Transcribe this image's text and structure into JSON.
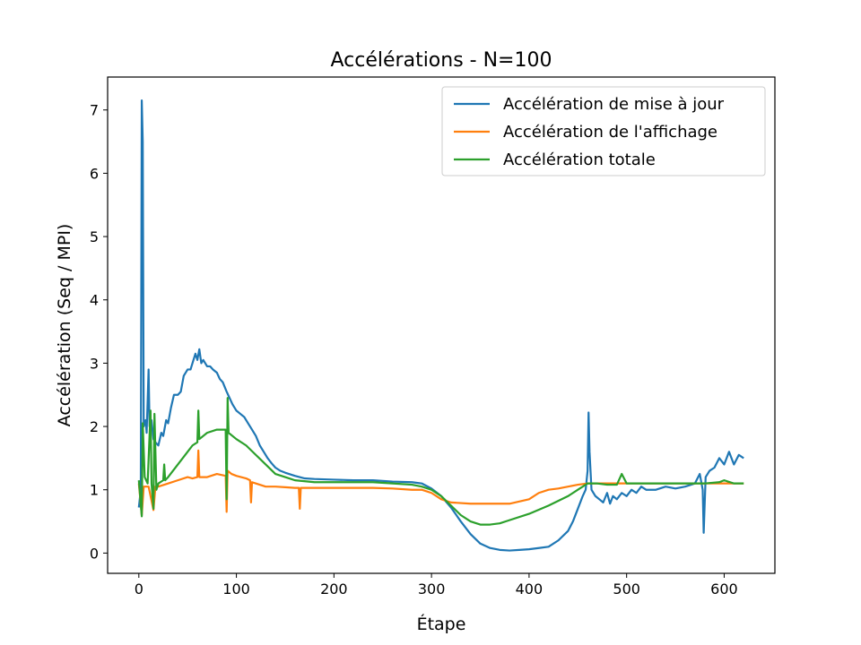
{
  "chart_data": {
    "type": "line",
    "title": "Accélérations - N=100",
    "xlabel": "Étape",
    "ylabel": "Accélération (Seq / MPI)",
    "xlim": [
      -32,
      652
    ],
    "ylim": [
      -0.32,
      7.52
    ],
    "xticks": [
      0,
      100,
      200,
      300,
      400,
      500,
      600
    ],
    "yticks": [
      0,
      1,
      2,
      3,
      4,
      5,
      6,
      7
    ],
    "grid": false,
    "legend_position": "top-right",
    "series": [
      {
        "name": "Accélération de mise à jour",
        "color": "#1f77b4",
        "points": [
          [
            0,
            0.72
          ],
          [
            2,
            1.0
          ],
          [
            3,
            7.15
          ],
          [
            4,
            6.5
          ],
          [
            5,
            2.0
          ],
          [
            7,
            2.1
          ],
          [
            8,
            1.9
          ],
          [
            10,
            2.9
          ],
          [
            11,
            2.0
          ],
          [
            13,
            2.1
          ],
          [
            15,
            1.8
          ],
          [
            17,
            1.75
          ],
          [
            20,
            1.7
          ],
          [
            23,
            1.9
          ],
          [
            25,
            1.85
          ],
          [
            28,
            2.1
          ],
          [
            30,
            2.05
          ],
          [
            33,
            2.3
          ],
          [
            36,
            2.5
          ],
          [
            40,
            2.5
          ],
          [
            43,
            2.55
          ],
          [
            46,
            2.8
          ],
          [
            50,
            2.9
          ],
          [
            53,
            2.9
          ],
          [
            56,
            3.05
          ],
          [
            58,
            3.15
          ],
          [
            60,
            3.05
          ],
          [
            62,
            3.22
          ],
          [
            64,
            3.0
          ],
          [
            66,
            3.05
          ],
          [
            70,
            2.95
          ],
          [
            73,
            2.95
          ],
          [
            76,
            2.9
          ],
          [
            80,
            2.85
          ],
          [
            83,
            2.75
          ],
          [
            86,
            2.7
          ],
          [
            90,
            2.55
          ],
          [
            93,
            2.45
          ],
          [
            96,
            2.35
          ],
          [
            100,
            2.25
          ],
          [
            104,
            2.2
          ],
          [
            108,
            2.15
          ],
          [
            112,
            2.05
          ],
          [
            116,
            1.95
          ],
          [
            120,
            1.85
          ],
          [
            124,
            1.7
          ],
          [
            128,
            1.6
          ],
          [
            132,
            1.5
          ],
          [
            136,
            1.42
          ],
          [
            140,
            1.35
          ],
          [
            145,
            1.3
          ],
          [
            150,
            1.27
          ],
          [
            160,
            1.22
          ],
          [
            170,
            1.18
          ],
          [
            180,
            1.17
          ],
          [
            200,
            1.16
          ],
          [
            220,
            1.15
          ],
          [
            240,
            1.15
          ],
          [
            260,
            1.13
          ],
          [
            280,
            1.12
          ],
          [
            290,
            1.1
          ],
          [
            300,
            1.02
          ],
          [
            310,
            0.9
          ],
          [
            320,
            0.72
          ],
          [
            330,
            0.5
          ],
          [
            340,
            0.3
          ],
          [
            350,
            0.15
          ],
          [
            360,
            0.08
          ],
          [
            370,
            0.05
          ],
          [
            380,
            0.04
          ],
          [
            390,
            0.05
          ],
          [
            400,
            0.06
          ],
          [
            410,
            0.08
          ],
          [
            420,
            0.1
          ],
          [
            430,
            0.2
          ],
          [
            440,
            0.35
          ],
          [
            445,
            0.5
          ],
          [
            450,
            0.7
          ],
          [
            455,
            0.9
          ],
          [
            458,
            1.0
          ],
          [
            460,
            1.3
          ],
          [
            461,
            2.22
          ],
          [
            462,
            1.6
          ],
          [
            464,
            1.0
          ],
          [
            468,
            0.9
          ],
          [
            472,
            0.85
          ],
          [
            476,
            0.8
          ],
          [
            480,
            0.95
          ],
          [
            483,
            0.78
          ],
          [
            486,
            0.9
          ],
          [
            490,
            0.85
          ],
          [
            495,
            0.95
          ],
          [
            500,
            0.9
          ],
          [
            505,
            1.0
          ],
          [
            510,
            0.95
          ],
          [
            515,
            1.05
          ],
          [
            520,
            1.0
          ],
          [
            530,
            1.0
          ],
          [
            540,
            1.05
          ],
          [
            550,
            1.02
          ],
          [
            560,
            1.05
          ],
          [
            570,
            1.1
          ],
          [
            575,
            1.25
          ],
          [
            578,
            1.0
          ],
          [
            579,
            0.32
          ],
          [
            581,
            1.2
          ],
          [
            585,
            1.3
          ],
          [
            590,
            1.35
          ],
          [
            595,
            1.5
          ],
          [
            600,
            1.4
          ],
          [
            605,
            1.6
          ],
          [
            610,
            1.4
          ],
          [
            615,
            1.55
          ],
          [
            620,
            1.5
          ]
        ]
      },
      {
        "name": "Accélération de l'affichage",
        "color": "#ff7f0e",
        "points": [
          [
            0,
            1.1
          ],
          [
            3,
            0.6
          ],
          [
            5,
            1.05
          ],
          [
            10,
            1.05
          ],
          [
            15,
            0.68
          ],
          [
            17,
            1.05
          ],
          [
            20,
            1.05
          ],
          [
            30,
            1.1
          ],
          [
            40,
            1.15
          ],
          [
            50,
            1.2
          ],
          [
            55,
            1.18
          ],
          [
            60,
            1.2
          ],
          [
            61,
            1.62
          ],
          [
            62,
            1.2
          ],
          [
            70,
            1.2
          ],
          [
            80,
            1.25
          ],
          [
            89,
            1.22
          ],
          [
            90,
            0.65
          ],
          [
            91,
            1.3
          ],
          [
            95,
            1.25
          ],
          [
            100,
            1.22
          ],
          [
            110,
            1.18
          ],
          [
            114,
            1.15
          ],
          [
            115,
            0.8
          ],
          [
            116,
            1.12
          ],
          [
            120,
            1.1
          ],
          [
            130,
            1.05
          ],
          [
            140,
            1.05
          ],
          [
            150,
            1.04
          ],
          [
            160,
            1.03
          ],
          [
            164,
            1.03
          ],
          [
            165,
            0.7
          ],
          [
            166,
            1.03
          ],
          [
            180,
            1.03
          ],
          [
            200,
            1.03
          ],
          [
            220,
            1.03
          ],
          [
            240,
            1.03
          ],
          [
            260,
            1.02
          ],
          [
            280,
            1.0
          ],
          [
            290,
            1.0
          ],
          [
            300,
            0.95
          ],
          [
            310,
            0.85
          ],
          [
            320,
            0.8
          ],
          [
            340,
            0.78
          ],
          [
            360,
            0.78
          ],
          [
            380,
            0.78
          ],
          [
            400,
            0.85
          ],
          [
            410,
            0.95
          ],
          [
            420,
            1.0
          ],
          [
            430,
            1.02
          ],
          [
            440,
            1.05
          ],
          [
            450,
            1.08
          ],
          [
            460,
            1.1
          ],
          [
            480,
            1.1
          ],
          [
            500,
            1.1
          ],
          [
            520,
            1.1
          ],
          [
            540,
            1.1
          ],
          [
            560,
            1.1
          ],
          [
            580,
            1.1
          ],
          [
            600,
            1.1
          ],
          [
            620,
            1.1
          ]
        ]
      },
      {
        "name": "Accélération totale",
        "color": "#2ca02c",
        "points": [
          [
            0,
            1.15
          ],
          [
            3,
            0.58
          ],
          [
            4,
            2.05
          ],
          [
            6,
            1.2
          ],
          [
            9,
            1.1
          ],
          [
            12,
            2.25
          ],
          [
            13,
            1.1
          ],
          [
            15,
            0.7
          ],
          [
            16,
            2.2
          ],
          [
            18,
            1.0
          ],
          [
            20,
            1.1
          ],
          [
            25,
            1.15
          ],
          [
            26,
            1.4
          ],
          [
            27,
            1.15
          ],
          [
            30,
            1.2
          ],
          [
            40,
            1.4
          ],
          [
            50,
            1.6
          ],
          [
            55,
            1.7
          ],
          [
            60,
            1.75
          ],
          [
            61,
            2.25
          ],
          [
            62,
            1.8
          ],
          [
            70,
            1.9
          ],
          [
            80,
            1.95
          ],
          [
            89,
            1.95
          ],
          [
            90,
            0.85
          ],
          [
            91,
            2.45
          ],
          [
            92,
            1.9
          ],
          [
            100,
            1.8
          ],
          [
            110,
            1.7
          ],
          [
            120,
            1.55
          ],
          [
            130,
            1.4
          ],
          [
            140,
            1.25
          ],
          [
            150,
            1.2
          ],
          [
            160,
            1.15
          ],
          [
            180,
            1.12
          ],
          [
            200,
            1.12
          ],
          [
            220,
            1.12
          ],
          [
            240,
            1.12
          ],
          [
            260,
            1.1
          ],
          [
            280,
            1.08
          ],
          [
            290,
            1.05
          ],
          [
            300,
            1.0
          ],
          [
            310,
            0.9
          ],
          [
            320,
            0.75
          ],
          [
            330,
            0.6
          ],
          [
            340,
            0.5
          ],
          [
            350,
            0.45
          ],
          [
            360,
            0.45
          ],
          [
            370,
            0.47
          ],
          [
            380,
            0.52
          ],
          [
            400,
            0.62
          ],
          [
            420,
            0.75
          ],
          [
            440,
            0.9
          ],
          [
            450,
            1.0
          ],
          [
            460,
            1.1
          ],
          [
            470,
            1.1
          ],
          [
            480,
            1.08
          ],
          [
            490,
            1.08
          ],
          [
            495,
            1.25
          ],
          [
            500,
            1.1
          ],
          [
            520,
            1.1
          ],
          [
            540,
            1.1
          ],
          [
            560,
            1.1
          ],
          [
            580,
            1.1
          ],
          [
            595,
            1.12
          ],
          [
            600,
            1.15
          ],
          [
            610,
            1.1
          ],
          [
            620,
            1.1
          ]
        ]
      }
    ]
  }
}
